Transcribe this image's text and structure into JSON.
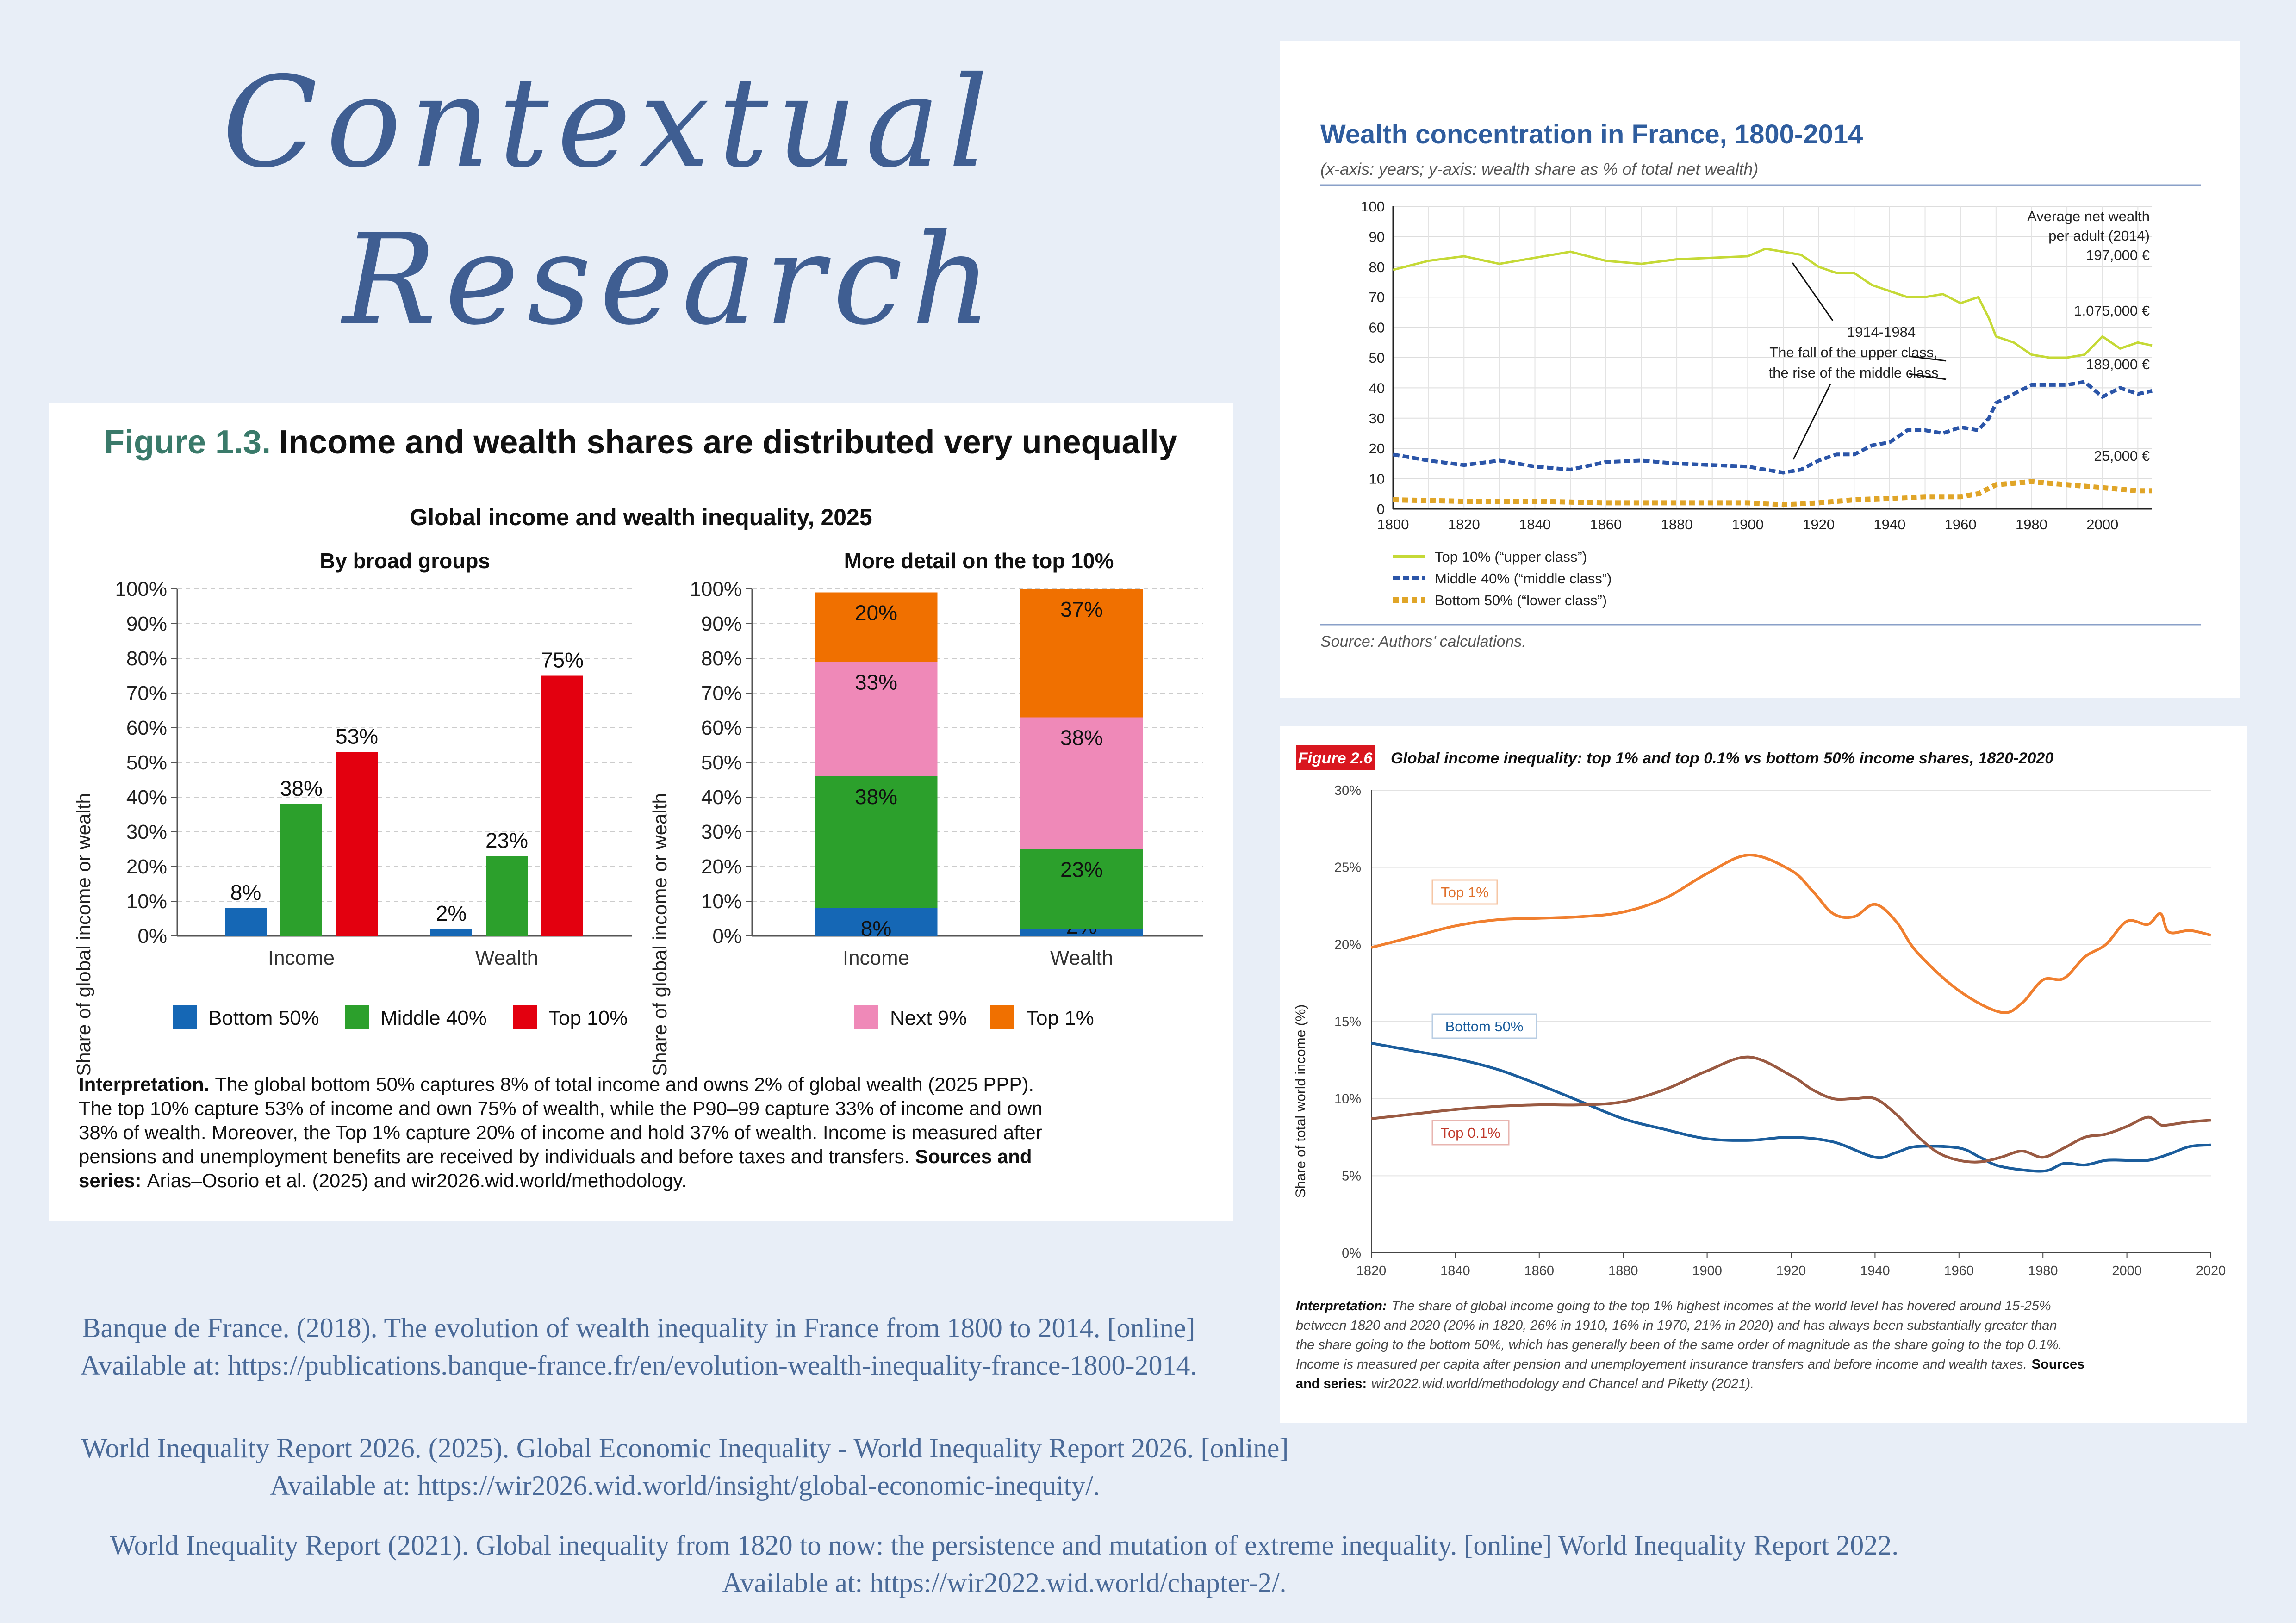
{
  "heading": {
    "line1": "Contextual",
    "line2": "Research"
  },
  "fig13": {
    "figure_number": "Figure 1.3.",
    "figure_title": "Income and wealth shares are distributed very unequally",
    "chart_title": "Global income and wealth inequality, 2025",
    "interpretation_bold": "Interpretation.",
    "interpretation_line1": "The global bottom 50% captures 8% of total income and owns 2% of global wealth (2025 PPP).",
    "interpretation_line2": "The top 10% capture 53% of income and own 75% of wealth, while the P90–99 capture 33% of income and own",
    "interpretation_line3": "38% of wealth. Moreover, the Top 1% capture 20% of income and hold 37% of wealth. Income is measured after",
    "interpretation_line4": "pensions and unemployment benefits are received by individuals and before taxes and transfers.",
    "sources_bold_a": "Sources and",
    "sources_bold_b": "series:",
    "sources_text": "Arias–Osorio et al. (2025) and wir2026.wid.world/methodology."
  },
  "france": {
    "title": "Wealth concentration in France, 1800-2014",
    "subtitle": "(x-axis: years; y-axis: wealth share as % of total net wealth)",
    "source": "Source: Authors’ calculations.",
    "annotation_period": "1914-1984",
    "annotation_line1": "The fall of the upper class,",
    "annotation_line2": "the rise of the middle class",
    "avg_label_1": "Average net wealth",
    "avg_label_2": "per adult (2014)",
    "avg_value": "197,000 €",
    "top_value": "1,075,000 €",
    "mid_value": "189,000 €",
    "bot_value": "25,000 €",
    "legend_top": "Top 10% (“upper class”)",
    "legend_mid": "Middle 40% (“middle class”)",
    "legend_bot": "Bottom 50% (“lower class”)"
  },
  "wir": {
    "figure_label": "Figure 2.6",
    "title": "Global income inequality: top 1% and top 0.1% vs bottom 50% income shares, 1820-2020",
    "ylabel": "Share of total world income (%)",
    "label_top1": "Top 1%",
    "label_bottom50": "Bottom 50%",
    "label_top01": "Top 0.1%",
    "interp_bold": "Interpretation:",
    "interp_line1": "The share of global income going to the top 1% highest incomes at the world level has hovered around 15-25%",
    "interp_line2": "between 1820 and 2020 (20% in 1820, 26% in 1910, 16% in 1970, 21% in 2020) and has always been substantially greater than",
    "interp_line3": "the share going to the bottom 50%, which has generally been of the same order of magnitude as the share going to the top 0.1%.",
    "interp_line4": "Income is measured per capita after pension and unemployement insurance transfers and before income and wealth taxes.",
    "sources_bold_a": "Sources",
    "sources_bold_b": "and series:",
    "sources_text": "wir2022.wid.world/methodology and Chancel and Piketty (2021)."
  },
  "references": {
    "ref1_line1": "Banque de France. (2018). The evolution of wealth inequality in France from 1800 to 2014. [online]",
    "ref1_line2": "Available at: https://publications.banque-france.fr/en/evolution-wealth-inequality-france-1800-2014.",
    "ref2_line1": "World Inequality Report 2026. (2025). Global Economic Inequality - World Inequality Report 2026. [online]",
    "ref2_line2": "Available at: https://wir2026.wid.world/insight/global-economic-inequity/.",
    "ref3_line1": "World Inequality Report (2021). Global inequality from 1820 to now: the persistence and mutation of extreme inequality. [online] World Inequality Report 2022.",
    "ref3_line2": "Available at: https://wir2022.wid.world/chapter-2/."
  },
  "colors": {
    "bottom50": "#1567b5",
    "middle40": "#2ca02c",
    "top10": "#e3000f",
    "next9": "#ef89b8",
    "top1": "#f07000",
    "france_top": "#c5d936",
    "france_mid": "#2b55a8",
    "france_bot": "#e0a528",
    "wir_top1": "#f07f2f",
    "wir_bottom50": "#1b5d9c",
    "wir_top01": "#9a5a42"
  },
  "chart_data": [
    {
      "type": "bar",
      "title": "By broad groups",
      "ylabel": "Share of global income or wealth",
      "ylim": [
        0,
        100
      ],
      "yticks": [
        "0%",
        "10%",
        "20%",
        "30%",
        "40%",
        "50%",
        "60%",
        "70%",
        "80%",
        "90%",
        "100%"
      ],
      "categories": [
        "Income",
        "Wealth"
      ],
      "series": [
        {
          "name": "Bottom 50%",
          "values": [
            8,
            2
          ],
          "labels": [
            "8%",
            "2%"
          ]
        },
        {
          "name": "Middle 40%",
          "values": [
            38,
            23
          ],
          "labels": [
            "38%",
            "23%"
          ]
        },
        {
          "name": "Top 10%",
          "values": [
            53,
            75
          ],
          "labels": [
            "53%",
            "75%"
          ]
        }
      ],
      "legend": "bottom"
    },
    {
      "type": "bar",
      "stacked": true,
      "title": "More detail on the top 10%",
      "ylabel": "Share of global income or wealth",
      "ylim": [
        0,
        100
      ],
      "yticks": [
        "0%",
        "10%",
        "20%",
        "30%",
        "40%",
        "50%",
        "60%",
        "70%",
        "80%",
        "90%",
        "100%"
      ],
      "categories": [
        "Income",
        "Wealth"
      ],
      "series": [
        {
          "name": "Bottom 50%",
          "values": [
            8,
            2
          ],
          "labels": [
            "8%",
            "2%"
          ]
        },
        {
          "name": "Middle 40%",
          "values": [
            38,
            23
          ],
          "labels": [
            "38%",
            "23%"
          ]
        },
        {
          "name": "Next 9%",
          "values": [
            33,
            38
          ],
          "labels": [
            "33%",
            "38%"
          ]
        },
        {
          "name": "Top 1%",
          "values": [
            20,
            37
          ],
          "labels": [
            "20%",
            "37%"
          ]
        }
      ],
      "legend": "bottom"
    },
    {
      "type": "line",
      "title": "Wealth concentration in France, 1800-2014",
      "xlim": [
        1800,
        2014
      ],
      "ylim": [
        0,
        100
      ],
      "xticks": [
        "1800",
        "1820",
        "1840",
        "1860",
        "1880",
        "1900",
        "1920",
        "1940",
        "1960",
        "1980",
        "2000"
      ],
      "yticks": [
        "0",
        "10",
        "20",
        "30",
        "40",
        "50",
        "60",
        "70",
        "80",
        "90",
        "100"
      ],
      "series": [
        {
          "name": "Top 10% (“upper class”)",
          "x": [
            1800,
            1810,
            1820,
            1830,
            1840,
            1850,
            1860,
            1870,
            1880,
            1890,
            1900,
            1905,
            1910,
            1915,
            1920,
            1925,
            1930,
            1935,
            1940,
            1945,
            1950,
            1955,
            1960,
            1965,
            1968,
            1970,
            1975,
            1980,
            1985,
            1990,
            1995,
            2000,
            2005,
            2010,
            2014
          ],
          "y": [
            79,
            82,
            83.5,
            81,
            83,
            85,
            82,
            81,
            82.5,
            83,
            83.5,
            86,
            85,
            84,
            80,
            78,
            78,
            74,
            72,
            70,
            70,
            71,
            68,
            70,
            63,
            57,
            55,
            51,
            50,
            50,
            51,
            57,
            53,
            55,
            54
          ]
        },
        {
          "name": "Middle 40% (“middle class”)",
          "x": [
            1800,
            1810,
            1820,
            1830,
            1840,
            1850,
            1860,
            1870,
            1880,
            1890,
            1900,
            1905,
            1910,
            1915,
            1920,
            1925,
            1930,
            1935,
            1940,
            1945,
            1950,
            1955,
            1960,
            1965,
            1968,
            1970,
            1975,
            1980,
            1985,
            1990,
            1995,
            2000,
            2005,
            2010,
            2014
          ],
          "y": [
            18,
            16,
            14.5,
            16,
            14,
            13,
            15.5,
            16,
            15,
            14.5,
            14,
            13,
            12,
            13,
            16,
            18,
            18,
            21,
            22,
            26,
            26,
            25,
            27,
            26,
            30,
            35,
            38,
            41,
            41,
            41,
            42,
            37,
            40,
            38,
            39
          ]
        },
        {
          "name": "Bottom 50% (“lower class”)",
          "x": [
            1800,
            1820,
            1840,
            1860,
            1880,
            1900,
            1910,
            1920,
            1930,
            1940,
            1950,
            1960,
            1965,
            1970,
            1980,
            1990,
            2000,
            2010,
            2014
          ],
          "y": [
            3,
            2.5,
            2.5,
            2,
            2,
            2,
            1.5,
            2,
            3,
            3.5,
            4,
            4,
            5,
            8,
            9,
            8,
            7,
            6,
            6
          ]
        }
      ],
      "legend": "bottom-left"
    },
    {
      "type": "line",
      "title": "Global income inequality: top 1% and top 0.1% vs bottom 50% income shares, 1820-2020",
      "ylabel": "Share of total world income (%)",
      "xlim": [
        1820,
        2020
      ],
      "ylim": [
        0,
        30
      ],
      "xticks": [
        "1820",
        "1840",
        "1860",
        "1880",
        "1900",
        "1920",
        "1940",
        "1960",
        "1980",
        "2000",
        "2020"
      ],
      "yticks": [
        "0%",
        "5%",
        "10%",
        "15%",
        "20%",
        "25%",
        "30%"
      ],
      "series": [
        {
          "name": "Top 1%",
          "x": [
            1820,
            1830,
            1840,
            1850,
            1860,
            1870,
            1880,
            1890,
            1900,
            1910,
            1920,
            1925,
            1930,
            1935,
            1940,
            1945,
            1950,
            1960,
            1970,
            1975,
            1980,
            1985,
            1990,
            1995,
            2000,
            2005,
            2008,
            2010,
            2015,
            2020
          ],
          "y": [
            19.8,
            20.5,
            21.2,
            21.6,
            21.7,
            21.8,
            22.1,
            23,
            24.6,
            25.8,
            24.8,
            23.5,
            22,
            21.8,
            22.6,
            21.5,
            19.5,
            17,
            15.6,
            16.2,
            17.7,
            17.8,
            19.2,
            20,
            21.5,
            21.3,
            22,
            20.8,
            20.9,
            20.6
          ]
        },
        {
          "name": "Bottom 50%",
          "x": [
            1820,
            1830,
            1840,
            1850,
            1860,
            1870,
            1880,
            1890,
            1900,
            1910,
            1920,
            1930,
            1940,
            1945,
            1950,
            1960,
            1965,
            1970,
            1980,
            1985,
            1990,
            1995,
            2000,
            2005,
            2010,
            2015,
            2020
          ],
          "y": [
            13.6,
            13.1,
            12.6,
            11.9,
            10.9,
            9.8,
            8.7,
            8,
            7.4,
            7.3,
            7.5,
            7.2,
            6.2,
            6.5,
            6.9,
            6.8,
            6.2,
            5.6,
            5.3,
            5.8,
            5.7,
            6,
            6,
            6,
            6.4,
            6.9,
            7
          ]
        },
        {
          "name": "Top 0.1%",
          "x": [
            1820,
            1830,
            1840,
            1850,
            1860,
            1870,
            1880,
            1890,
            1900,
            1910,
            1920,
            1925,
            1930,
            1935,
            1940,
            1945,
            1950,
            1955,
            1960,
            1965,
            1970,
            1975,
            1980,
            1985,
            1990,
            1995,
            2000,
            2005,
            2008,
            2010,
            2015,
            2020
          ],
          "y": [
            8.7,
            9,
            9.3,
            9.5,
            9.6,
            9.6,
            9.8,
            10.6,
            11.8,
            12.7,
            11.5,
            10.6,
            10,
            10,
            10,
            9,
            7.6,
            6.5,
            6,
            5.9,
            6.2,
            6.6,
            6.2,
            6.8,
            7.5,
            7.7,
            8.2,
            8.8,
            8.3,
            8.3,
            8.5,
            8.6
          ]
        }
      ]
    }
  ]
}
